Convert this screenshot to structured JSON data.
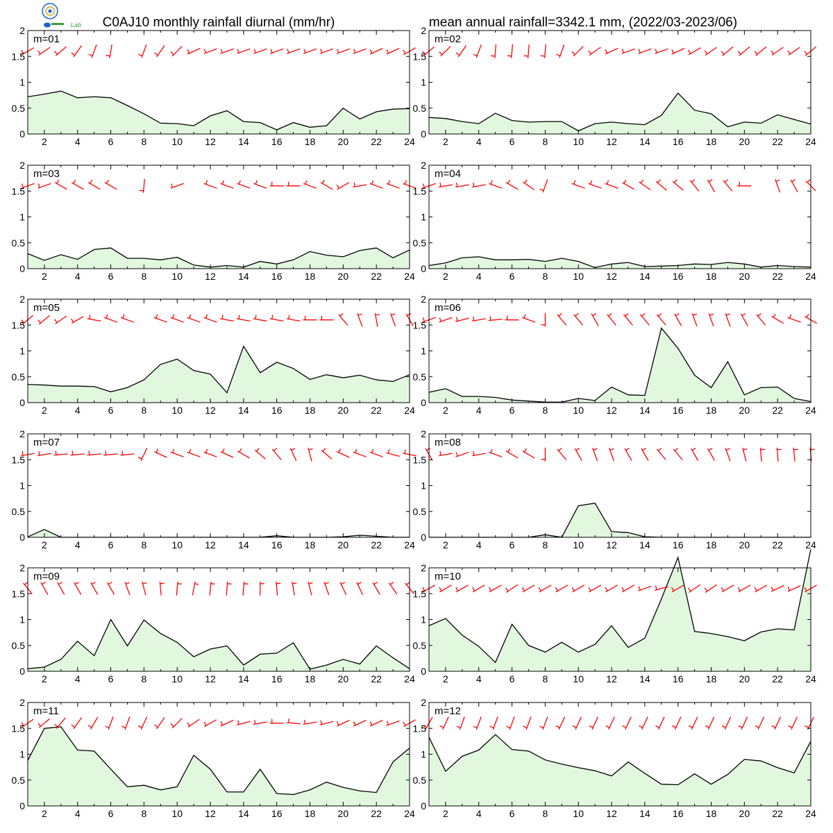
{
  "title_left": "C0AJ10 monthly rainfall diurnal (mm/hr)",
  "title_right": "mean annual rainfall=3342.1 mm, (2022/03-2023/06)",
  "logo": {
    "name": "lab-logo",
    "text": "Lab",
    "colors": [
      "#1e64c8",
      "#3aa03a",
      "#e0b020"
    ]
  },
  "colors": {
    "fill": "#e1f8df",
    "line": "#000000",
    "barb": "#ff0000",
    "frame": "#000000"
  },
  "chart_data": {
    "type": "area",
    "x_ticks": [
      2,
      4,
      6,
      8,
      10,
      12,
      14,
      16,
      18,
      20,
      22,
      24
    ],
    "xlim": [
      1,
      24
    ],
    "ylim": [
      0,
      2
    ],
    "y_ticks": [
      "0",
      "0.5",
      "1",
      "1.5",
      "2"
    ],
    "wind_barb_level": 1.6,
    "panels": [
      {
        "label": "m=01",
        "values": [
          0.72,
          0.77,
          0.83,
          0.7,
          0.72,
          0.7,
          0.55,
          0.39,
          0.21,
          0.2,
          0.16,
          0.35,
          0.45,
          0.24,
          0.22,
          0.08,
          0.22,
          0.13,
          0.16,
          0.5,
          0.29,
          0.43,
          0.48,
          0.49
        ],
        "wind_dir": [
          240,
          235,
          230,
          215,
          200,
          190,
          185,
          200,
          215,
          225,
          245,
          250,
          250,
          250,
          250,
          250,
          250,
          250,
          250,
          250,
          250,
          245,
          245,
          240
        ],
        "wind_barbs": [
          1,
          1,
          1,
          1,
          1,
          1,
          0,
          1,
          1,
          1,
          1,
          1,
          1,
          1,
          1,
          1,
          1,
          1,
          1,
          1,
          1,
          1,
          1,
          1
        ]
      },
      {
        "label": "m=02",
        "values": [
          0.32,
          0.3,
          0.24,
          0.2,
          0.4,
          0.26,
          0.23,
          0.24,
          0.24,
          0.06,
          0.2,
          0.23,
          0.2,
          0.18,
          0.36,
          0.79,
          0.46,
          0.39,
          0.14,
          0.23,
          0.21,
          0.37,
          0.28,
          0.19
        ],
        "wind_dir": [
          230,
          225,
          215,
          200,
          185,
          185,
          185,
          185,
          200,
          225,
          235,
          245,
          250,
          250,
          250,
          245,
          240,
          235,
          230,
          230,
          230,
          235,
          235,
          230
        ],
        "wind_barbs": [
          1,
          1,
          1,
          1,
          1,
          1,
          1,
          1,
          1,
          1,
          1,
          1,
          1,
          1,
          1,
          1,
          1,
          1,
          1,
          1,
          1,
          1,
          1,
          1
        ]
      },
      {
        "label": "m=03",
        "values": [
          0.29,
          0.16,
          0.27,
          0.18,
          0.37,
          0.4,
          0.2,
          0.2,
          0.17,
          0.22,
          0.07,
          0.03,
          0.06,
          0.03,
          0.14,
          0.09,
          0.17,
          0.33,
          0.26,
          0.23,
          0.35,
          0.4,
          0.21,
          0.36
        ],
        "wind_dir": [
          250,
          250,
          300,
          300,
          300,
          300,
          0,
          185,
          0,
          250,
          0,
          290,
          290,
          290,
          290,
          270,
          270,
          290,
          300,
          240,
          260,
          290,
          290,
          290
        ],
        "wind_barbs": [
          1,
          1,
          1,
          1,
          1,
          1,
          0,
          1,
          0,
          1,
          0,
          1,
          1,
          1,
          1,
          1,
          1,
          1,
          1,
          1,
          1,
          1,
          1,
          1
        ]
      },
      {
        "label": "m=04",
        "values": [
          0.06,
          0.11,
          0.21,
          0.23,
          0.17,
          0.17,
          0.18,
          0.14,
          0.2,
          0.14,
          0.02,
          0.09,
          0.12,
          0.04,
          0.05,
          0.06,
          0.09,
          0.08,
          0.12,
          0.09,
          0.03,
          0.06,
          0.04,
          0.03
        ],
        "wind_dir": [
          250,
          260,
          260,
          260,
          290,
          300,
          305,
          200,
          0,
          290,
          290,
          290,
          300,
          305,
          310,
          310,
          320,
          330,
          320,
          270,
          0,
          340,
          330,
          315
        ],
        "wind_barbs": [
          1,
          1,
          1,
          1,
          1,
          1,
          1,
          1,
          0,
          1,
          1,
          1,
          1,
          1,
          1,
          1,
          1,
          1,
          1,
          1,
          0,
          1,
          1,
          1
        ]
      },
      {
        "label": "m=05",
        "values": [
          0.35,
          0.34,
          0.32,
          0.32,
          0.31,
          0.21,
          0.29,
          0.44,
          0.74,
          0.84,
          0.62,
          0.55,
          0.19,
          1.09,
          0.58,
          0.78,
          0.66,
          0.45,
          0.54,
          0.48,
          0.53,
          0.44,
          0.41,
          0.54
        ],
        "wind_dir": [
          230,
          230,
          235,
          240,
          280,
          290,
          290,
          0,
          290,
          290,
          290,
          290,
          280,
          280,
          280,
          280,
          280,
          270,
          270,
          320,
          340,
          350,
          340,
          330
        ],
        "wind_barbs": [
          1,
          1,
          1,
          1,
          1,
          1,
          1,
          0,
          1,
          1,
          1,
          1,
          1,
          1,
          1,
          1,
          1,
          1,
          1,
          1,
          1,
          1,
          1,
          1
        ]
      },
      {
        "label": "m=06",
        "values": [
          0.2,
          0.27,
          0.12,
          0.12,
          0.1,
          0.05,
          0.03,
          0.01,
          0.01,
          0.08,
          0.04,
          0.3,
          0.15,
          0.14,
          1.44,
          1.05,
          0.53,
          0.29,
          0.79,
          0.15,
          0.29,
          0.3,
          0.08,
          0.02
        ],
        "wind_dir": [
          250,
          250,
          255,
          260,
          265,
          270,
          290,
          180,
          320,
          320,
          330,
          320,
          320,
          320,
          320,
          330,
          340,
          340,
          340,
          330,
          320,
          300,
          290,
          300
        ],
        "wind_barbs": [
          1,
          1,
          1,
          1,
          1,
          1,
          1,
          1,
          1,
          1,
          1,
          1,
          1,
          1,
          1,
          1,
          1,
          1,
          1,
          1,
          1,
          1,
          1,
          1
        ]
      },
      {
        "label": "m=07",
        "values": [
          0.01,
          0.15,
          0.0,
          0.0,
          0.0,
          0.0,
          0.0,
          0.0,
          0.0,
          0.0,
          0.0,
          0.0,
          0.0,
          0.0,
          0.0,
          0.03,
          0.0,
          0.0,
          0.0,
          0.01,
          0.04,
          0.02,
          0.0,
          0.0
        ],
        "wind_dir": [
          260,
          260,
          265,
          265,
          265,
          265,
          265,
          205,
          295,
          290,
          290,
          290,
          295,
          300,
          310,
          320,
          335,
          345,
          310,
          295,
          290,
          290,
          285,
          280
        ],
        "wind_barbs": [
          1,
          1,
          1,
          1,
          1,
          1,
          1,
          1,
          1,
          1,
          1,
          1,
          1,
          1,
          1,
          1,
          1,
          1,
          1,
          1,
          1,
          1,
          1,
          1
        ]
      },
      {
        "label": "m=08",
        "values": [
          0.0,
          0.0,
          0.0,
          0.0,
          0.0,
          0.0,
          0.0,
          0.05,
          0.0,
          0.61,
          0.66,
          0.11,
          0.09,
          0.01,
          0.0,
          0.0,
          0.0,
          0.0,
          0.0,
          0.0,
          0.0,
          0.0,
          0.0,
          0.0
        ],
        "wind_dir": [
          330,
          260,
          250,
          260,
          290,
          300,
          300,
          180,
          320,
          330,
          340,
          340,
          330,
          330,
          320,
          320,
          330,
          330,
          340,
          345,
          355,
          355,
          355,
          355
        ],
        "wind_barbs": [
          1,
          1,
          1,
          1,
          1,
          1,
          1,
          1,
          1,
          1,
          1,
          1,
          1,
          1,
          1,
          1,
          1,
          1,
          1,
          1,
          1,
          1,
          1,
          1
        ]
      },
      {
        "label": "m=09",
        "values": [
          0.05,
          0.08,
          0.23,
          0.58,
          0.3,
          1.0,
          0.49,
          0.99,
          0.73,
          0.56,
          0.28,
          0.43,
          0.49,
          0.12,
          0.33,
          0.35,
          0.55,
          0.04,
          0.12,
          0.23,
          0.14,
          0.49,
          0.26,
          0.05
        ],
        "wind_dir": [
          320,
          330,
          330,
          330,
          330,
          330,
          340,
          345,
          355,
          5,
          10,
          5,
          5,
          5,
          0,
          355,
          350,
          345,
          340,
          335,
          335,
          330,
          325,
          320
        ],
        "wind_barbs": [
          1,
          1,
          1,
          1,
          1,
          1,
          1,
          1,
          1,
          1,
          1,
          1,
          1,
          1,
          1,
          1,
          1,
          1,
          1,
          1,
          1,
          1,
          1,
          1
        ]
      },
      {
        "label": "m=10",
        "values": [
          0.88,
          1.02,
          0.7,
          0.48,
          0.17,
          0.91,
          0.5,
          0.37,
          0.56,
          0.37,
          0.52,
          0.88,
          0.46,
          0.64,
          1.4,
          2.2,
          0.77,
          0.73,
          0.67,
          0.59,
          0.76,
          0.82,
          0.8,
          2.36
        ],
        "wind_dir": [
          240,
          240,
          240,
          240,
          240,
          235,
          240,
          240,
          240,
          240,
          240,
          240,
          240,
          250,
          255,
          240,
          235,
          235,
          240,
          240,
          240,
          245,
          245,
          240
        ],
        "wind_barbs": [
          1,
          1,
          1,
          1,
          1,
          1,
          1,
          1,
          1,
          1,
          1,
          1,
          1,
          1,
          1,
          1,
          1,
          1,
          1,
          1,
          1,
          1,
          1,
          1
        ]
      },
      {
        "label": "m=11",
        "values": [
          0.88,
          1.5,
          1.53,
          1.08,
          1.06,
          0.71,
          0.37,
          0.4,
          0.31,
          0.37,
          0.98,
          0.71,
          0.27,
          0.27,
          0.71,
          0.24,
          0.22,
          0.31,
          0.46,
          0.36,
          0.29,
          0.26,
          0.85,
          1.12
        ],
        "wind_dir": [
          235,
          230,
          220,
          215,
          210,
          200,
          200,
          205,
          215,
          225,
          235,
          240,
          245,
          255,
          260,
          270,
          275,
          260,
          255,
          245,
          245,
          245,
          250,
          240
        ],
        "wind_barbs": [
          1,
          1,
          1,
          1,
          1,
          1,
          1,
          1,
          1,
          1,
          1,
          1,
          1,
          1,
          1,
          1,
          1,
          1,
          1,
          1,
          1,
          1,
          1,
          1
        ]
      },
      {
        "label": "m=12",
        "values": [
          1.33,
          0.67,
          0.96,
          1.08,
          1.38,
          1.09,
          1.06,
          0.89,
          0.81,
          0.74,
          0.68,
          0.58,
          0.85,
          0.63,
          0.42,
          0.41,
          0.62,
          0.42,
          0.61,
          0.9,
          0.87,
          0.74,
          0.64,
          1.25
        ],
        "wind_dir": [
          210,
          205,
          200,
          200,
          200,
          200,
          200,
          200,
          205,
          205,
          205,
          205,
          205,
          205,
          205,
          205,
          205,
          205,
          205,
          205,
          205,
          205,
          205,
          205
        ],
        "wind_barbs": [
          1,
          1,
          1,
          1,
          1,
          1,
          1,
          1,
          1,
          1,
          1,
          1,
          1,
          1,
          1,
          1,
          1,
          1,
          1,
          1,
          1,
          1,
          1,
          1
        ]
      }
    ]
  }
}
